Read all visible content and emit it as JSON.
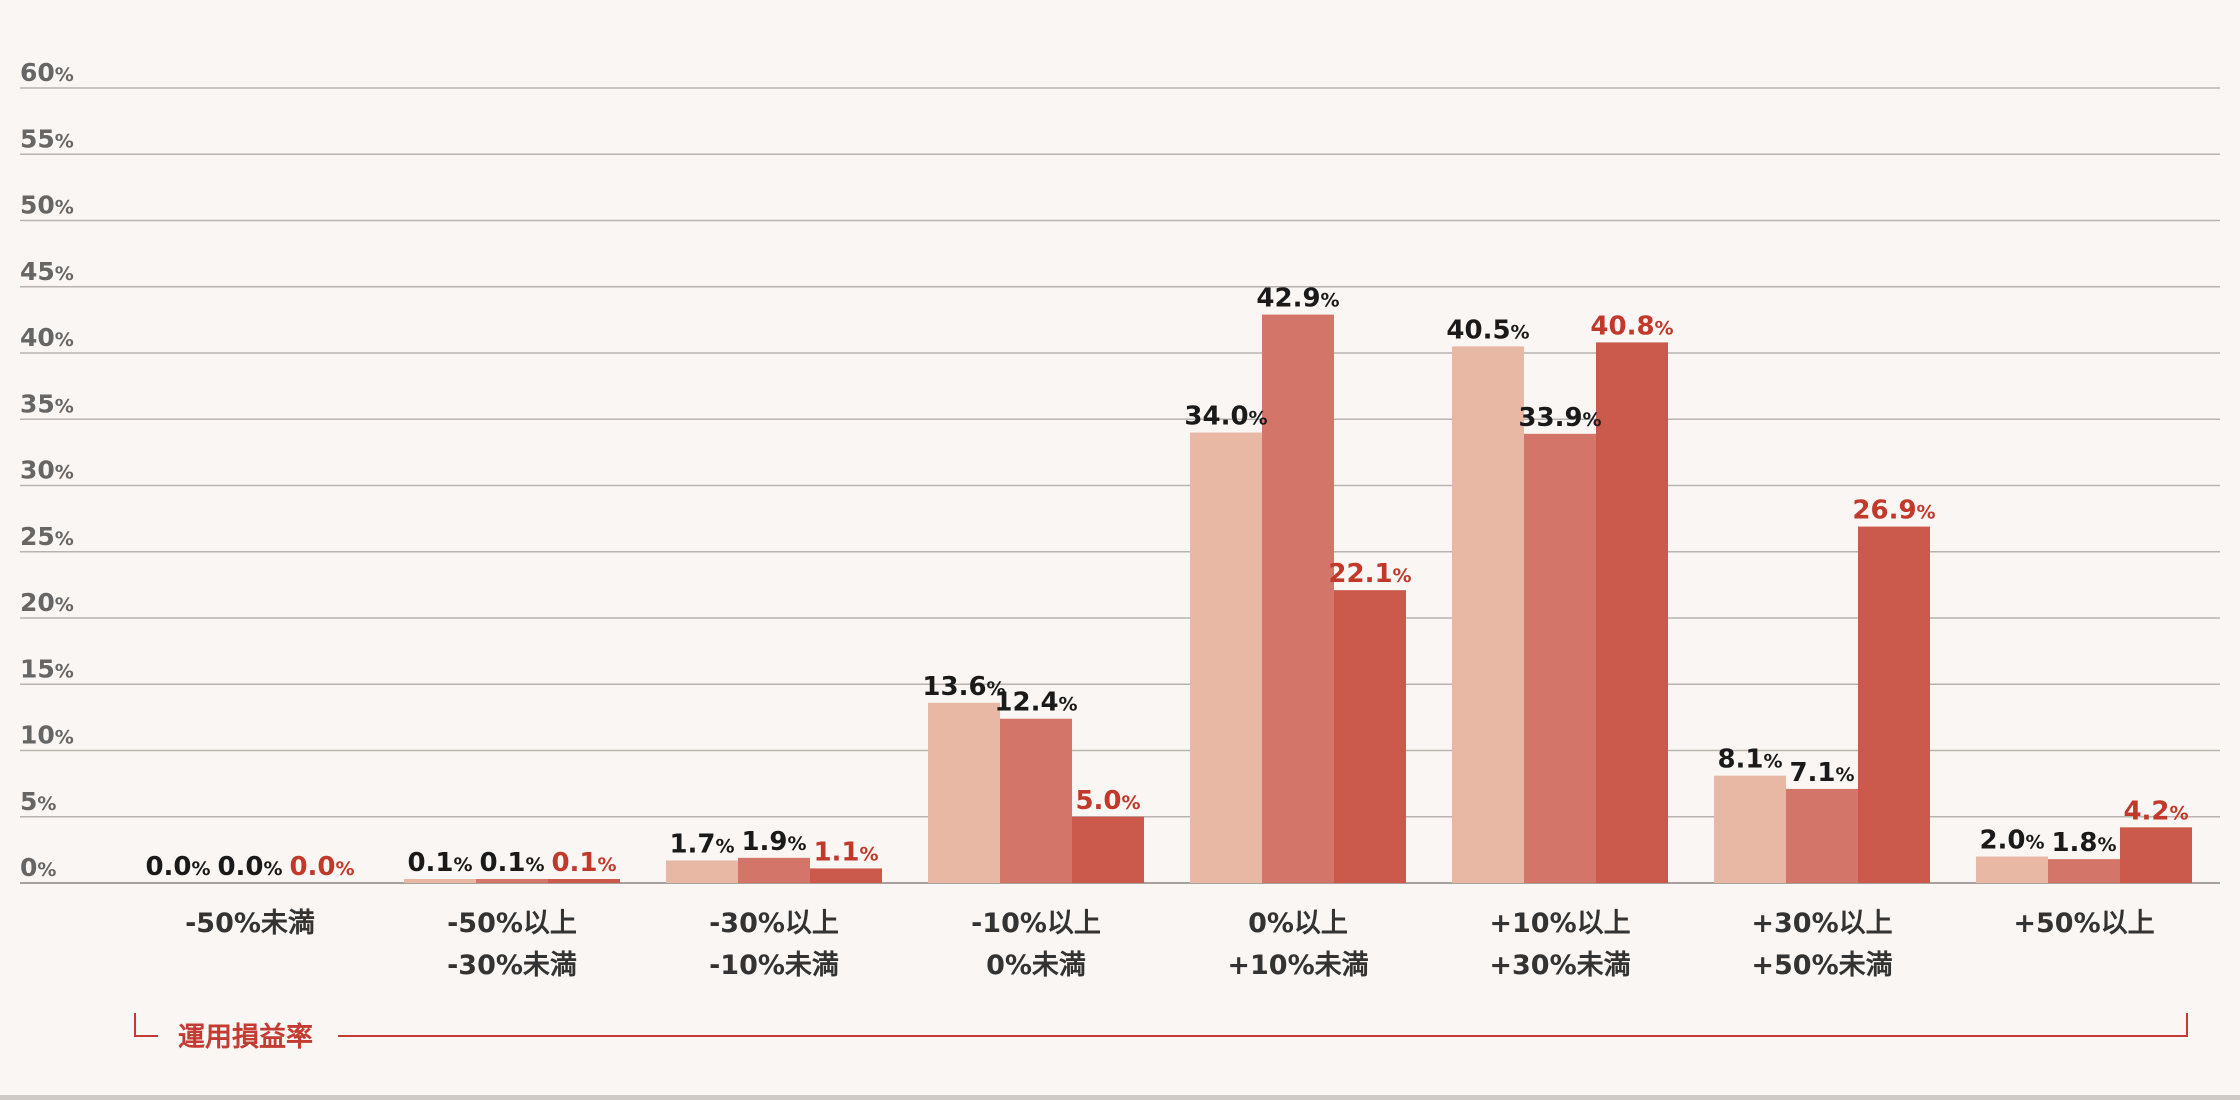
{
  "colors": {
    "background": "#faf6f3",
    "grid": "#b8b3af",
    "axis": "#a7a19c",
    "tick_text": "#666666",
    "label_dark": "#1a1a1a",
    "label_red": "#c0392b",
    "series": [
      "#e8b8a5",
      "#d4756a",
      "#cb5a4d"
    ],
    "bracket": "#c43b33"
  },
  "chart_data": {
    "type": "bar",
    "title": "",
    "xlabel": "運用損益率",
    "ylabel": "",
    "ylim": [
      0,
      60
    ],
    "y_ticks": [
      0,
      5,
      10,
      15,
      20,
      25,
      30,
      35,
      40,
      45,
      50,
      55,
      60
    ],
    "y_tick_labels": [
      "0%",
      "5%",
      "10%",
      "15%",
      "20%",
      "25%",
      "30%",
      "35%",
      "40%",
      "45%",
      "50%",
      "55%",
      "60%"
    ],
    "grid": true,
    "legend": "none",
    "categories": [
      "-50%未満",
      "-50%以上\n-30%未満",
      "-30%以上\n-10%未満",
      "-10%以上\n0%未満",
      "0%以上\n+10%未満",
      "+10%以上\n+30%未満",
      "+30%以上\n+50%未満",
      "+50%以上"
    ],
    "series": [
      {
        "values": [
          0.0,
          0.1,
          1.7,
          13.6,
          34.0,
          40.5,
          8.1,
          2.0
        ]
      },
      {
        "values": [
          0.0,
          0.1,
          1.9,
          12.4,
          42.9,
          33.9,
          7.1,
          1.8
        ]
      },
      {
        "values": [
          0.0,
          0.1,
          1.1,
          5.0,
          22.1,
          40.8,
          26.9,
          4.2
        ]
      }
    ],
    "value_labels": [
      [
        "0.0",
        "0.1",
        "1.7",
        "13.6",
        "34.0",
        "40.5",
        "8.1",
        "2.0"
      ],
      [
        "0.0",
        "0.1",
        "1.9",
        "12.4",
        "42.9",
        "33.9",
        "7.1",
        "1.8"
      ],
      [
        "0.0",
        "0.1",
        "1.1",
        "5.0",
        "22.1",
        "40.8",
        "26.9",
        "4.2"
      ]
    ],
    "value_label_unit": "%"
  }
}
